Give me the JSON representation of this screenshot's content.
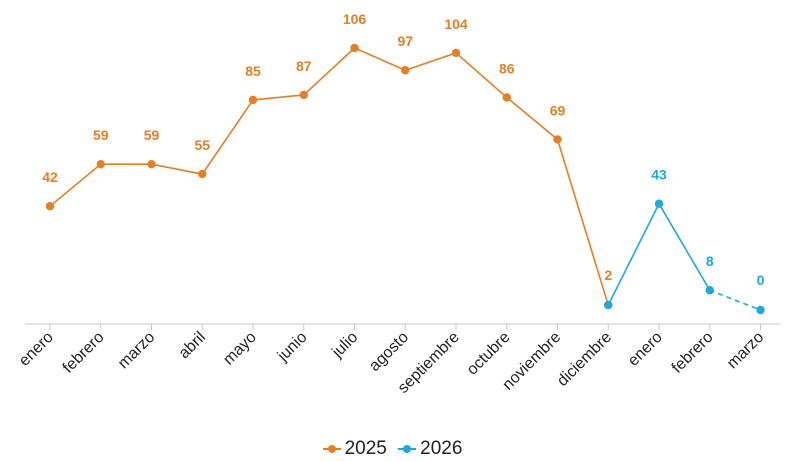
{
  "chart_data": {
    "type": "line",
    "categories": [
      "enero",
      "febrero",
      "marzo",
      "abril",
      "mayo",
      "junio",
      "julio",
      "agosto",
      "septiembre",
      "octubre",
      "noviembre",
      "diciembre",
      "enero",
      "febrero",
      "marzo"
    ],
    "series": [
      {
        "name": "2025",
        "color": "#E67E22",
        "values": [
          42,
          59,
          59,
          55,
          85,
          87,
          106,
          97,
          104,
          86,
          69,
          2,
          null,
          null,
          null
        ]
      },
      {
        "name": "2026",
        "color": "#1CA8E0",
        "values": [
          null,
          null,
          null,
          null,
          null,
          null,
          null,
          null,
          null,
          null,
          null,
          2,
          43,
          8,
          0
        ],
        "data_labels_from_index": 12,
        "dashed_segment_from_index": 13
      }
    ],
    "title": "",
    "xlabel": "",
    "ylabel": "",
    "ylim": [
      0,
      110
    ],
    "grid": false,
    "legend_position": "bottom"
  }
}
